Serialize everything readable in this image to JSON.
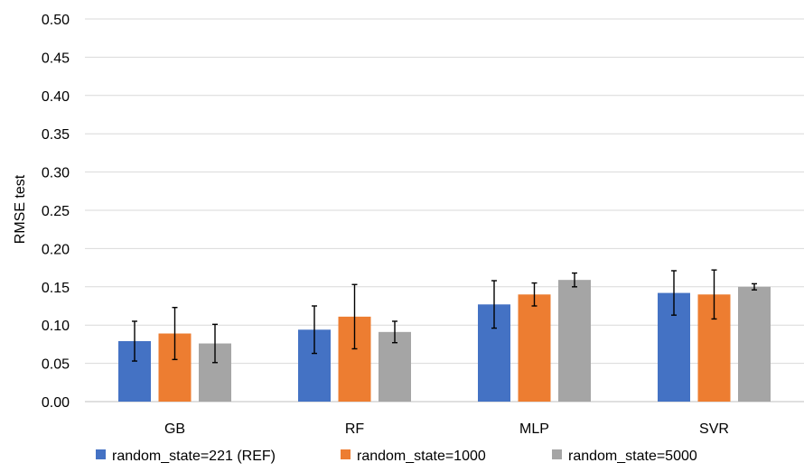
{
  "chart_data": {
    "type": "bar",
    "categories": [
      "GB",
      "RF",
      "MLP",
      "SVR"
    ],
    "series": [
      {
        "name": "random_state=221 (REF)",
        "color": "#4472C4",
        "values": [
          0.079,
          0.094,
          0.127,
          0.142
        ],
        "errors": [
          0.026,
          0.031,
          0.031,
          0.029
        ]
      },
      {
        "name": "random_state=1000",
        "color": "#ED7D31",
        "values": [
          0.089,
          0.111,
          0.14,
          0.14
        ],
        "errors": [
          0.034,
          0.042,
          0.015,
          0.032
        ]
      },
      {
        "name": "random_state=5000",
        "color": "#A5A5A5",
        "values": [
          0.076,
          0.091,
          0.159,
          0.15
        ],
        "errors": [
          0.025,
          0.014,
          0.009,
          0.004
        ]
      }
    ],
    "ylabel": "RMSE test",
    "ylim": [
      0,
      0.5
    ],
    "yticks": [
      "0.00",
      "0.05",
      "0.10",
      "0.15",
      "0.20",
      "0.25",
      "0.30",
      "0.35",
      "0.40",
      "0.45",
      "0.50"
    ],
    "grid": true,
    "legend_position": "bottom"
  }
}
